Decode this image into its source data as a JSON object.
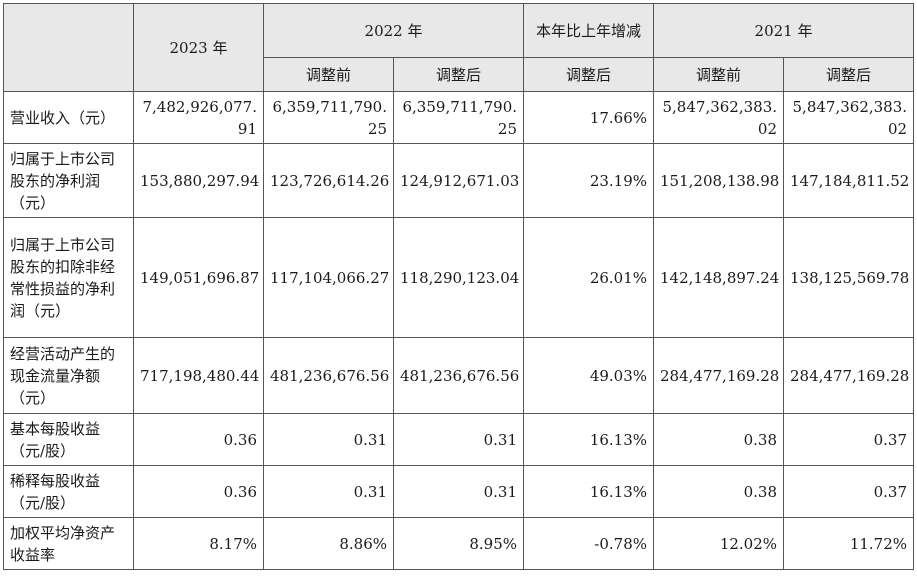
{
  "headers": {
    "y2023": "2023 年",
    "y2022": "2022 年",
    "change": "本年比上年增减",
    "y2021": "2021 年",
    "before_adj": "调整前",
    "after_adj": "调整后"
  },
  "rows": [
    {
      "label": "营业收入（元）",
      "v2023": "7,482,926,077.91",
      "v2022_before": "6,359,711,790.25",
      "v2022_after": "6,359,711,790.25",
      "change": "17.66%",
      "v2021_before": "5,847,362,383.02",
      "v2021_after": "5,847,362,383.02"
    },
    {
      "label": "归属于上市公司股东的净利润（元）",
      "v2023": "153,880,297.94",
      "v2022_before": "123,726,614.26",
      "v2022_after": "124,912,671.03",
      "change": "23.19%",
      "v2021_before": "151,208,138.98",
      "v2021_after": "147,184,811.52"
    },
    {
      "label": "归属于上市公司股东的扣除非经常性损益的净利润（元）",
      "v2023": "149,051,696.87",
      "v2022_before": "117,104,066.27",
      "v2022_after": "118,290,123.04",
      "change": "26.01%",
      "v2021_before": "142,148,897.24",
      "v2021_after": "138,125,569.78"
    },
    {
      "label": "经营活动产生的现金流量净额（元）",
      "v2023": "717,198,480.44",
      "v2022_before": "481,236,676.56",
      "v2022_after": "481,236,676.56",
      "change": "49.03%",
      "v2021_before": "284,477,169.28",
      "v2021_after": "284,477,169.28"
    },
    {
      "label": "基本每股收益（元/股）",
      "v2023": "0.36",
      "v2022_before": "0.31",
      "v2022_after": "0.31",
      "change": "16.13%",
      "v2021_before": "0.38",
      "v2021_after": "0.37"
    },
    {
      "label": "稀释每股收益（元/股）",
      "v2023": "0.36",
      "v2022_before": "0.31",
      "v2022_after": "0.31",
      "change": "16.13%",
      "v2021_before": "0.38",
      "v2021_after": "0.37"
    },
    {
      "label": "加权平均净资产收益率",
      "v2023": "8.17%",
      "v2022_before": "8.86%",
      "v2022_after": "8.95%",
      "change": "-0.78%",
      "v2021_before": "12.02%",
      "v2021_after": "11.72%"
    }
  ]
}
